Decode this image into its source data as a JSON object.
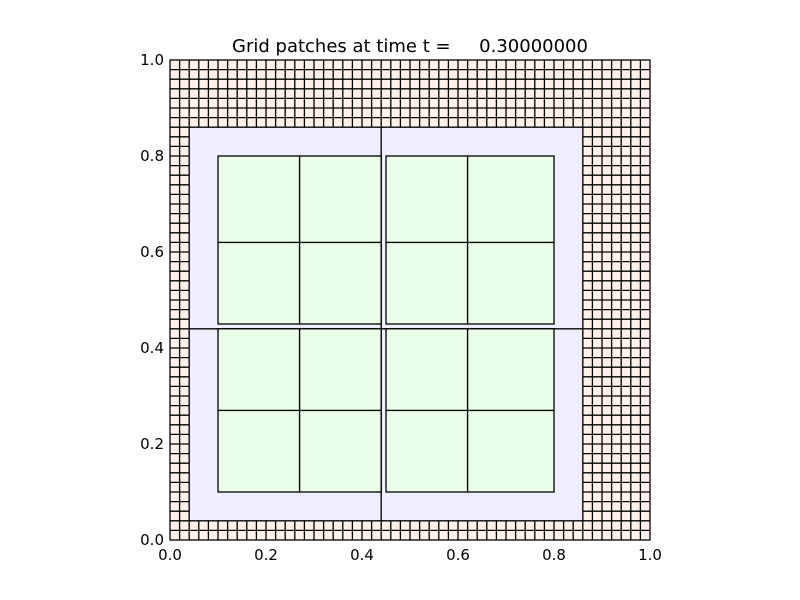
{
  "chart_data": {
    "type": "heatmap",
    "title": "Grid patches at time t =     0.30000000",
    "xlabel": "",
    "ylabel": "",
    "xlim": [
      0.0,
      1.0
    ],
    "ylim": [
      0.0,
      1.0
    ],
    "xticks": [
      "0.0",
      "0.2",
      "0.4",
      "0.6",
      "0.8",
      "1.0"
    ],
    "yticks": [
      "0.0",
      "0.2",
      "0.4",
      "0.6",
      "0.8",
      "1.0"
    ],
    "grid": false,
    "levels": [
      {
        "level": 1,
        "fill": "#fff0ea",
        "patches": [
          {
            "x": [
              0.0,
              1.0
            ],
            "y": [
              0.0,
              1.0
            ],
            "cells": [
              50,
              50
            ]
          }
        ]
      },
      {
        "level": 2,
        "fill": "#eeeeff",
        "patches": [
          {
            "x": [
              0.04,
              0.44
            ],
            "y": [
              0.04,
              0.44
            ]
          },
          {
            "x": [
              0.44,
              0.86
            ],
            "y": [
              0.04,
              0.44
            ]
          },
          {
            "x": [
              0.04,
              0.44
            ],
            "y": [
              0.44,
              0.86
            ]
          },
          {
            "x": [
              0.44,
              0.86
            ],
            "y": [
              0.44,
              0.86
            ]
          }
        ]
      },
      {
        "level": 3,
        "fill": "#eafeea",
        "patches": [
          {
            "x": [
              0.1,
              0.27
            ],
            "y": [
              0.1,
              0.27
            ]
          },
          {
            "x": [
              0.27,
              0.44
            ],
            "y": [
              0.1,
              0.27
            ]
          },
          {
            "x": [
              0.45,
              0.62
            ],
            "y": [
              0.1,
              0.27
            ]
          },
          {
            "x": [
              0.62,
              0.8
            ],
            "y": [
              0.1,
              0.27
            ]
          },
          {
            "x": [
              0.1,
              0.27
            ],
            "y": [
              0.27,
              0.44
            ]
          },
          {
            "x": [
              0.27,
              0.44
            ],
            "y": [
              0.27,
              0.44
            ]
          },
          {
            "x": [
              0.45,
              0.62
            ],
            "y": [
              0.27,
              0.44
            ]
          },
          {
            "x": [
              0.62,
              0.8
            ],
            "y": [
              0.27,
              0.44
            ]
          },
          {
            "x": [
              0.1,
              0.27
            ],
            "y": [
              0.45,
              0.62
            ]
          },
          {
            "x": [
              0.27,
              0.44
            ],
            "y": [
              0.45,
              0.62
            ]
          },
          {
            "x": [
              0.45,
              0.62
            ],
            "y": [
              0.45,
              0.62
            ]
          },
          {
            "x": [
              0.62,
              0.8
            ],
            "y": [
              0.45,
              0.62
            ]
          },
          {
            "x": [
              0.1,
              0.27
            ],
            "y": [
              0.62,
              0.8
            ]
          },
          {
            "x": [
              0.27,
              0.44
            ],
            "y": [
              0.62,
              0.8
            ]
          },
          {
            "x": [
              0.45,
              0.62
            ],
            "y": [
              0.62,
              0.8
            ]
          },
          {
            "x": [
              0.62,
              0.8
            ],
            "y": [
              0.62,
              0.8
            ]
          }
        ]
      }
    ]
  }
}
